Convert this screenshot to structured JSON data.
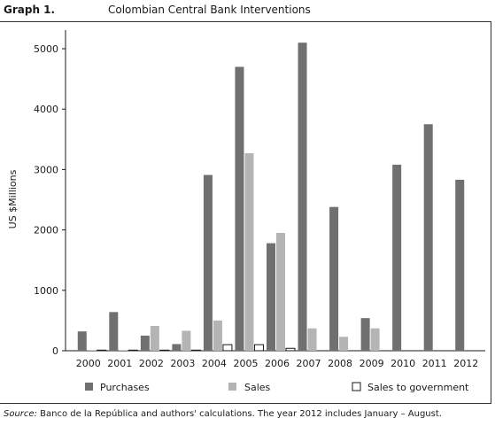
{
  "header": {
    "graph_label": "Graph 1.",
    "title": "Colombian Central Bank Interventions"
  },
  "footnote": {
    "source_label": "Source:",
    "text": " Banco de la República and authors' calculations. The year 2012 includes January – August."
  },
  "colors": {
    "purchases": "#707070",
    "sales": "#b4b4b4",
    "sales_to_government": "#ffffff",
    "outline": "#1a1a1a"
  },
  "chart_data": {
    "type": "bar",
    "title": "Colombian Central Bank Interventions",
    "xlabel": "",
    "ylabel": "US $Millions",
    "ylim": [
      0,
      5000
    ],
    "yticks": [
      0,
      1000,
      2000,
      3000,
      4000,
      5000
    ],
    "grid": false,
    "legend_position": "bottom",
    "categories": [
      "2000",
      "2001",
      "2002",
      "2003",
      "2004",
      "2005",
      "2006",
      "2007",
      "2008",
      "2009",
      "2010",
      "2011",
      "2012"
    ],
    "series": [
      {
        "name": "Purchases",
        "values": [
          320,
          640,
          250,
          110,
          2910,
          4700,
          1780,
          5100,
          2380,
          540,
          3080,
          3750,
          2830
        ]
      },
      {
        "name": "Sales",
        "values": [
          10,
          10,
          410,
          330,
          500,
          3270,
          1950,
          370,
          230,
          370,
          0,
          0,
          0
        ]
      },
      {
        "name": "Sales to government",
        "values": [
          10,
          10,
          10,
          10,
          100,
          100,
          40,
          0,
          0,
          0,
          0,
          0,
          0
        ]
      }
    ]
  }
}
